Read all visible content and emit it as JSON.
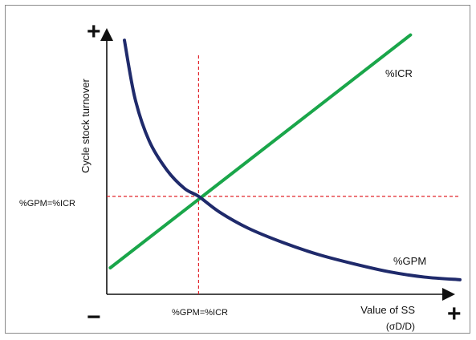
{
  "chart_data": {
    "type": "line",
    "xlabel_line1": "Value of SS",
    "xlabel_line2": "(σD/D)",
    "ylabel": "Cycle stock turnover",
    "axis_ends": {
      "y_plus": "+",
      "x_plus": "+",
      "origin_minus": "−"
    },
    "equilibrium_label_x": "%GPM=%ICR",
    "equilibrium_label_y": "%GPM=%ICR",
    "x_range": [
      0,
      100
    ],
    "y_range": [
      0,
      100
    ],
    "equilibrium": {
      "x": 26,
      "y": 37
    },
    "grid": false,
    "series": [
      {
        "name": "%ICR",
        "color": "#1aa64a",
        "shape": "straight line",
        "points": [
          [
            1,
            10
          ],
          [
            86,
            98
          ]
        ]
      },
      {
        "name": "%GPM",
        "color": "#1f2a6b",
        "shape": "decreasing convex curve",
        "points": [
          [
            5,
            96
          ],
          [
            8,
            74
          ],
          [
            12,
            58
          ],
          [
            17,
            47
          ],
          [
            22,
            40
          ],
          [
            26,
            37
          ],
          [
            32,
            31
          ],
          [
            40,
            25
          ],
          [
            50,
            19.5
          ],
          [
            60,
            15
          ],
          [
            70,
            11.5
          ],
          [
            80,
            8.5
          ],
          [
            90,
            6.5
          ],
          [
            100,
            5.5
          ]
        ]
      }
    ]
  }
}
